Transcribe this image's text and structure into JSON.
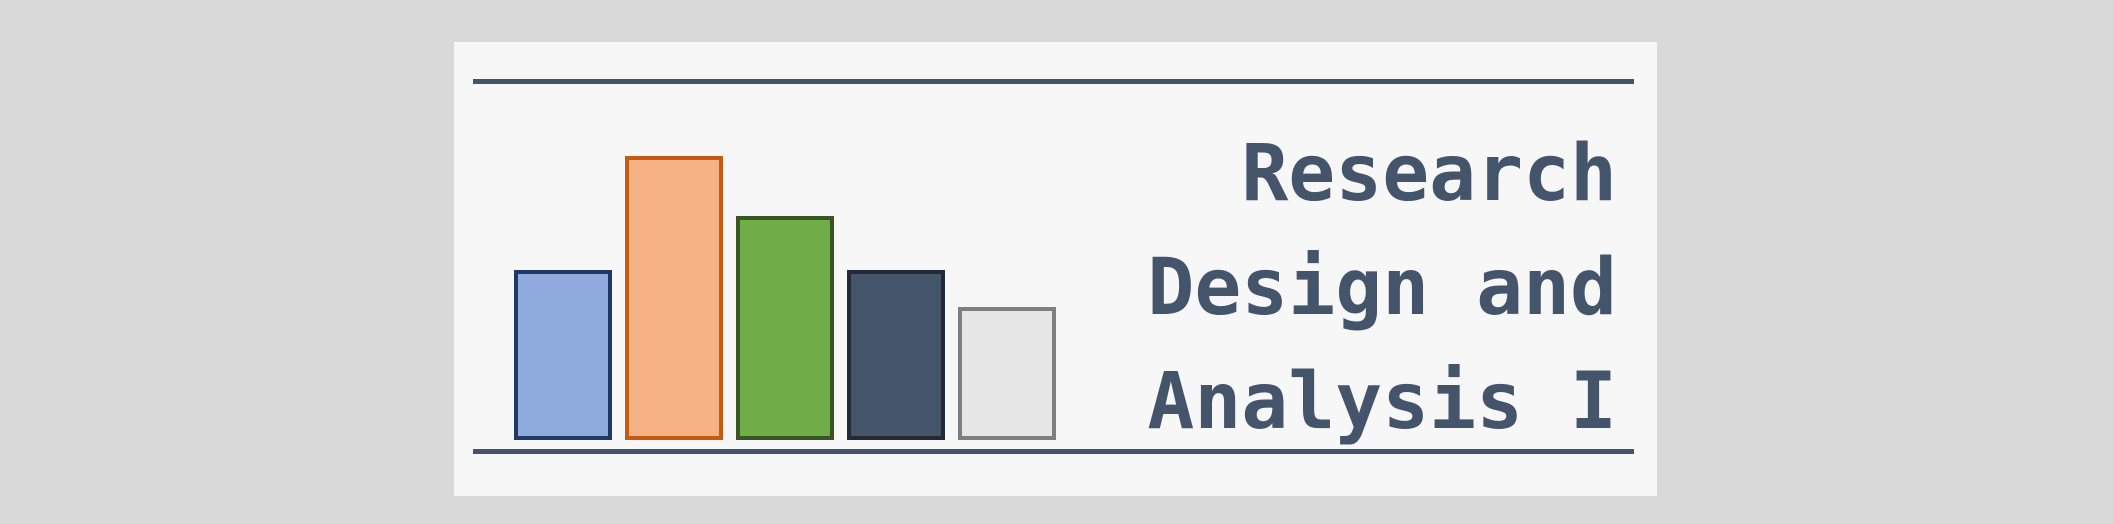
{
  "logo": {
    "title_lines": [
      "Research",
      "Design and",
      "Analysis I"
    ],
    "colors": {
      "background": "#d9d9d9",
      "card": "#f7f7f7",
      "text": "#44546a",
      "rule": "#44546a"
    },
    "bars": [
      {
        "level": 0.6,
        "fill": "#8faadc",
        "stroke": "#203864"
      },
      {
        "level": 1.0,
        "fill": "#f4b183",
        "stroke": "#c55a11"
      },
      {
        "level": 0.79,
        "fill": "#70ad47",
        "stroke": "#375623"
      },
      {
        "level": 0.6,
        "fill": "#44546a",
        "stroke": "#222a35"
      },
      {
        "level": 0.47,
        "fill": "#e7e6e6",
        "stroke": "#7f7f7f"
      }
    ]
  }
}
